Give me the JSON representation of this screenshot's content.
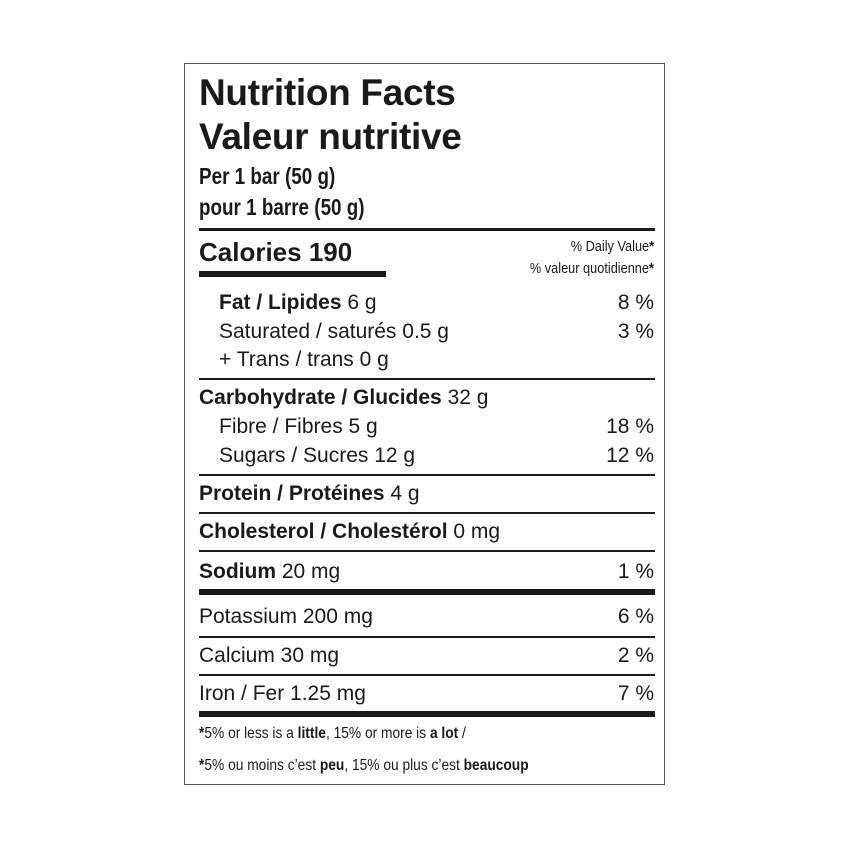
{
  "title_en": "Nutrition Facts",
  "title_fr": "Valeur nutritive",
  "serving_en": "Per 1 bar (50 g)",
  "serving_fr": "pour 1 barre (50 g)",
  "calories": "Calories 190",
  "dv_en": "% Daily Value",
  "dv_fr": "% valeur quotidienne",
  "asterisk": "*",
  "rows": {
    "fat": {
      "label": "Fat / Lipides",
      "amount": " 6 g",
      "pct": "8 %"
    },
    "saturated": {
      "label": "Saturated / saturés 0.5 g",
      "pct": "3 %"
    },
    "trans": {
      "label": "+ Trans / trans 0 g"
    },
    "carb": {
      "label": "Carbohydrate / Glucides",
      "amount": " 32 g"
    },
    "fibre": {
      "label": "Fibre / Fibres 5 g",
      "pct": "18 %"
    },
    "sugars": {
      "label": "Sugars / Sucres 12 g",
      "pct": "12 %"
    },
    "protein": {
      "label": "Protein / Protéines",
      "amount": " 4 g"
    },
    "cholesterol": {
      "label": "Cholesterol / Cholestérol",
      "amount": " 0 mg"
    },
    "sodium": {
      "label": "Sodium",
      "amount": " 20 mg",
      "pct": "1 %"
    },
    "potassium": {
      "label": "Potassium 200 mg",
      "pct": "6 %"
    },
    "calcium": {
      "label": "Calcium 30 mg",
      "pct": "2 %"
    },
    "iron": {
      "label": "Iron / Fer 1.25 mg",
      "pct": "7 %"
    }
  },
  "footnote_en": {
    "a": "5% or less is a ",
    "b": "little",
    "c": ", 15% or more is ",
    "d": "a lot",
    "e": " /"
  },
  "footnote_fr": {
    "a": "5% ou moins c’est ",
    "b": "peu",
    "c": ", 15% ou plus c’est ",
    "d": "beaucoup"
  }
}
